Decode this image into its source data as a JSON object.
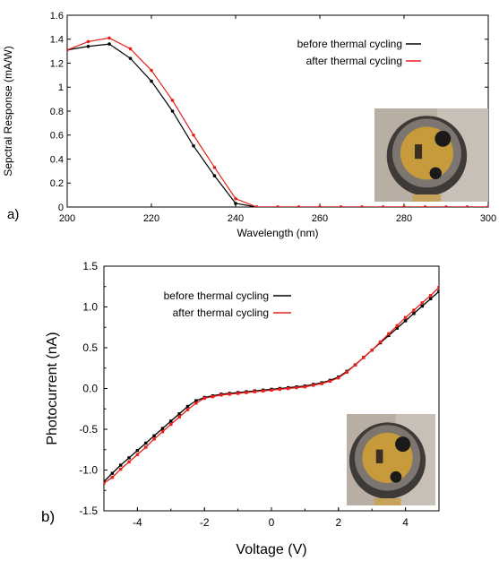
{
  "chart_data": [
    {
      "type": "line",
      "panel_label": "a)",
      "xlabel": "Wavelength (nm)",
      "ylabel": "Sepctral Response (mA/W)",
      "xlim": [
        200,
        300
      ],
      "ylim": [
        0,
        1.6
      ],
      "xticks": [
        "200",
        "220",
        "240",
        "260",
        "280",
        "300"
      ],
      "yticks": [
        "0",
        "0.2",
        "0.4",
        "0.6",
        "0.8",
        "1",
        "1.2",
        "1.4",
        "1.6"
      ],
      "grid": false,
      "legend_position": "top-right",
      "series": [
        {
          "name": "before thermal cycling",
          "color": "#000000",
          "x": [
            200,
            205,
            210,
            215,
            220,
            225,
            230,
            235,
            240,
            245,
            250,
            255,
            260,
            265,
            270,
            275,
            280,
            285,
            290,
            295,
            300
          ],
          "y": [
            1.31,
            1.34,
            1.36,
            1.24,
            1.05,
            0.8,
            0.51,
            0.26,
            0.03,
            0,
            0,
            0,
            0,
            0,
            0,
            0,
            0,
            0,
            0,
            0,
            0
          ]
        },
        {
          "name": "after thermal cycling",
          "color": "#e8201c",
          "x": [
            200,
            205,
            210,
            215,
            220,
            225,
            230,
            235,
            240,
            245,
            250,
            255,
            260,
            265,
            270,
            275,
            280,
            285,
            290,
            295,
            300
          ],
          "y": [
            1.31,
            1.38,
            1.41,
            1.32,
            1.14,
            0.89,
            0.6,
            0.33,
            0.07,
            0,
            0,
            0,
            0,
            0,
            0,
            0,
            0,
            0,
            0,
            0,
            0
          ]
        }
      ],
      "inset_image": "photo of round metal detector housing"
    },
    {
      "type": "line",
      "panel_label": "b)",
      "xlabel": "Voltage  (V)",
      "ylabel": "Photocurrent (nA)",
      "xlim": [
        -5,
        5
      ],
      "ylim": [
        -1.5,
        1.5
      ],
      "xticks": [
        "-4",
        "-2",
        "0",
        "2",
        "4"
      ],
      "yticks": [
        "-1.5",
        "-1.0",
        "-0.5",
        "0.0",
        "0.5",
        "1.0",
        "1.5"
      ],
      "grid": false,
      "legend_position": "top-left",
      "series": [
        {
          "name": "before thermal cycling",
          "color": "#000000",
          "x": [
            -5,
            -4.75,
            -4.5,
            -4.25,
            -4,
            -3.75,
            -3.5,
            -3.25,
            -3,
            -2.75,
            -2.5,
            -2.25,
            -2,
            -1.75,
            -1.5,
            -1.25,
            -1,
            -0.75,
            -0.5,
            -0.25,
            0,
            0.25,
            0.5,
            0.75,
            1,
            1.25,
            1.5,
            1.75,
            2,
            2.25,
            2.5,
            2.75,
            3,
            3.25,
            3.5,
            3.75,
            4,
            4.25,
            4.5,
            4.75,
            5
          ],
          "y": [
            -1.14,
            -1.04,
            -0.94,
            -0.85,
            -0.76,
            -0.67,
            -0.58,
            -0.49,
            -0.4,
            -0.31,
            -0.22,
            -0.15,
            -0.11,
            -0.09,
            -0.07,
            -0.06,
            -0.05,
            -0.04,
            -0.03,
            -0.02,
            -0.01,
            0.0,
            0.01,
            0.02,
            0.03,
            0.05,
            0.07,
            0.1,
            0.14,
            0.21,
            0.29,
            0.38,
            0.47,
            0.56,
            0.65,
            0.74,
            0.83,
            0.92,
            1.01,
            1.1,
            1.19
          ]
        },
        {
          "name": "after thermal cycling",
          "color": "#e8201c",
          "x": [
            -5,
            -4.75,
            -4.5,
            -4.25,
            -4,
            -3.75,
            -3.5,
            -3.25,
            -3,
            -2.75,
            -2.5,
            -2.25,
            -2,
            -1.75,
            -1.5,
            -1.25,
            -1,
            -0.75,
            -0.5,
            -0.25,
            0,
            0.25,
            0.5,
            0.75,
            1,
            1.25,
            1.5,
            1.75,
            2,
            2.25,
            2.5,
            2.75,
            3,
            3.25,
            3.5,
            3.75,
            4,
            4.25,
            4.5,
            4.75,
            5
          ],
          "y": [
            -1.16,
            -1.09,
            -0.99,
            -0.9,
            -0.81,
            -0.72,
            -0.62,
            -0.53,
            -0.44,
            -0.35,
            -0.26,
            -0.18,
            -0.12,
            -0.1,
            -0.08,
            -0.07,
            -0.06,
            -0.05,
            -0.04,
            -0.03,
            -0.02,
            -0.01,
            0.0,
            0.01,
            0.02,
            0.04,
            0.06,
            0.09,
            0.13,
            0.2,
            0.29,
            0.38,
            0.47,
            0.57,
            0.67,
            0.77,
            0.87,
            0.96,
            1.05,
            1.14,
            1.24
          ]
        }
      ],
      "inset_image": "photo of round metal detector housing"
    }
  ]
}
